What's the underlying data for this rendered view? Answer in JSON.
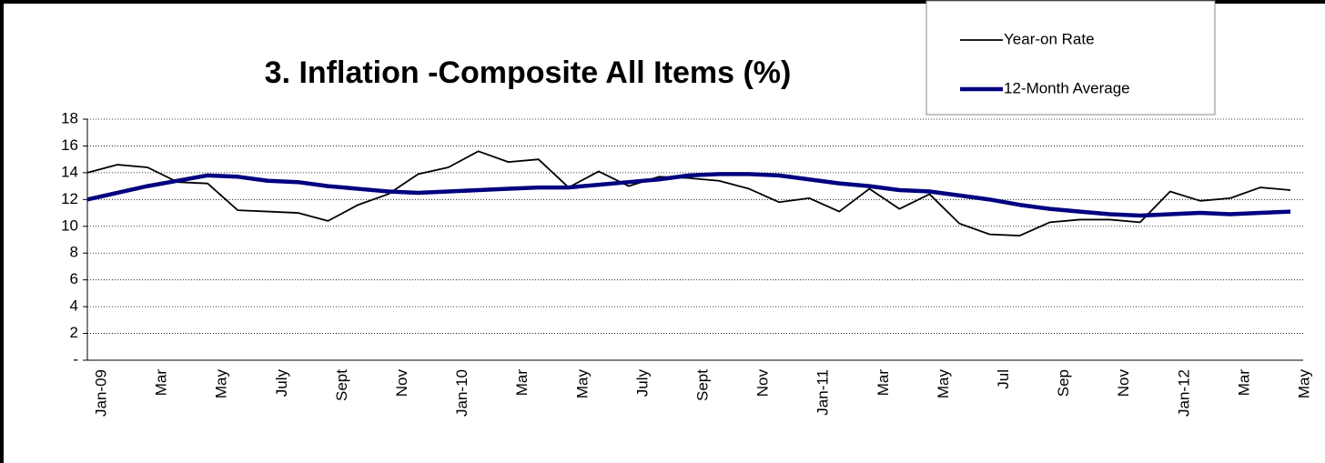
{
  "chart_data": {
    "type": "line",
    "title": "3. Inflation -Composite All Items (%)",
    "categories": [
      "Jan-09",
      null,
      "Mar",
      null,
      "May",
      null,
      "July",
      null,
      "Sept",
      null,
      "Nov",
      null,
      "Jan-10",
      null,
      "Mar",
      null,
      "May",
      null,
      "July",
      null,
      "Sept",
      null,
      "Nov",
      null,
      "Jan-11",
      null,
      "Mar",
      null,
      "May",
      null,
      "Jul",
      null,
      "Sep",
      null,
      "Nov",
      null,
      "Jan-12",
      null,
      "Mar",
      null,
      "May"
    ],
    "series": [
      {
        "name": "Year-on Rate",
        "color": "#000000",
        "values": [
          14.0,
          14.6,
          14.4,
          13.3,
          13.2,
          11.2,
          11.1,
          11.0,
          10.4,
          11.6,
          12.4,
          13.9,
          14.4,
          15.6,
          14.8,
          15.0,
          12.9,
          14.1,
          13.0,
          13.7,
          13.6,
          13.4,
          12.8,
          11.8,
          12.1,
          11.1,
          12.8,
          11.3,
          12.4,
          10.2,
          9.4,
          9.3,
          10.3,
          10.5,
          10.5,
          10.3,
          12.6,
          11.9,
          12.1,
          12.9,
          12.7
        ]
      },
      {
        "name": "12-Month Average",
        "color": "#000080",
        "values": [
          12.0,
          12.5,
          13.0,
          13.4,
          13.8,
          13.7,
          13.4,
          13.3,
          13.0,
          12.8,
          12.6,
          12.5,
          12.6,
          12.7,
          12.8,
          12.9,
          12.9,
          13.1,
          13.3,
          13.5,
          13.8,
          13.9,
          13.9,
          13.8,
          13.5,
          13.2,
          13.0,
          12.7,
          12.6,
          12.3,
          12.0,
          11.6,
          11.3,
          11.1,
          10.9,
          10.8,
          10.9,
          11.0,
          10.9,
          11.0,
          11.1
        ]
      }
    ],
    "ylim": [
      0,
      18
    ],
    "yticks": [
      {
        "value": 0,
        "label": "-"
      },
      2,
      4,
      6,
      8,
      10,
      12,
      14,
      16,
      18
    ],
    "grid": true,
    "legend": "top-right"
  }
}
